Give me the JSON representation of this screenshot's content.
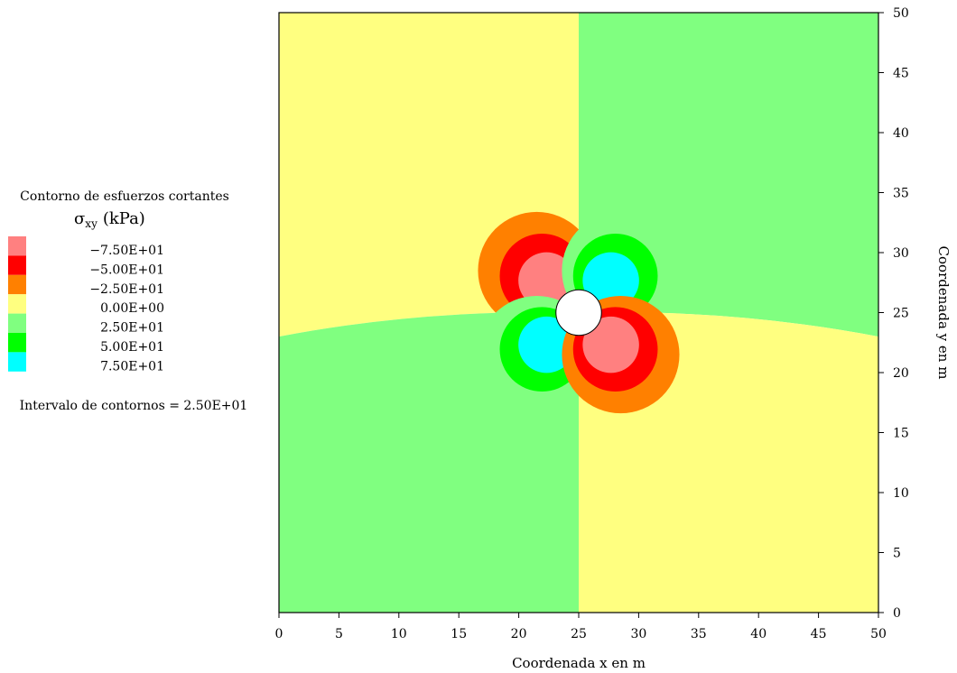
{
  "chart_data": {
    "type": "heatmap",
    "subtype": "filled-contour",
    "xlabel": "Coordenada x en m",
    "ylabel": "Coordenada y en m",
    "xlim": [
      0,
      50
    ],
    "ylim": [
      0,
      50
    ],
    "x_ticks": [
      0,
      5,
      10,
      15,
      20,
      25,
      30,
      35,
      40,
      45,
      50
    ],
    "y_ticks": [
      0,
      5,
      10,
      15,
      20,
      25,
      30,
      35,
      40,
      45,
      50
    ],
    "legend": {
      "title": "Contorno de esfuerzos cortantes",
      "symbol": "σ",
      "symbol_subscript": "xy",
      "unit": "(kPa)",
      "placement": "left",
      "entries": [
        {
          "label": "−7.50E+01",
          "value": -75,
          "color": "#ff8080"
        },
        {
          "label": "−5.00E+01",
          "value": -50,
          "color": "#ff0000"
        },
        {
          "label": "−2.50E+01",
          "value": -25,
          "color": "#ff8000"
        },
        {
          "label": "0.00E+00",
          "value": 0,
          "color": "#ffff80"
        },
        {
          "label": "2.50E+01",
          "value": 25,
          "color": "#80ff80"
        },
        {
          "label": "5.00E+01",
          "value": 50,
          "color": "#00ff00"
        },
        {
          "label": "7.50E+01",
          "value": 75,
          "color": "#00ffff"
        }
      ],
      "interval_text": "Intervalo de contornos = 2.50E+01"
    },
    "regions": {
      "negative_quadrants": [
        "top-left",
        "bottom-right"
      ],
      "positive_quadrants": [
        "top-right",
        "bottom-left"
      ],
      "background_negative_color": "#ffff80",
      "background_positive_color": "#80ff80"
    },
    "hole": {
      "center": [
        25,
        25
      ],
      "radius": 1.9
    },
    "lobes": [
      {
        "center": [
          21.5,
          28.5
        ],
        "sign": -1
      },
      {
        "center": [
          28.5,
          28.5
        ],
        "sign": 1
      },
      {
        "center": [
          21.5,
          21.5
        ],
        "sign": 1
      },
      {
        "center": [
          28.5,
          21.5
        ],
        "sign": -1
      }
    ]
  }
}
